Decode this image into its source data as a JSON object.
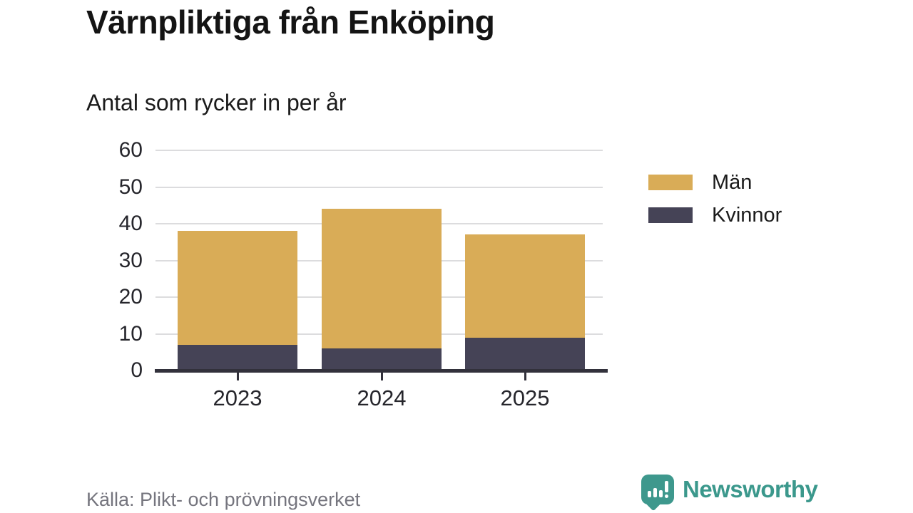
{
  "header": {
    "title": "Värnpliktiga från Enköping",
    "subtitle": "Antal som rycker in per år"
  },
  "chart_data": {
    "type": "bar",
    "stacked": true,
    "title": "Värnpliktiga från Enköping",
    "subtitle": "Antal som rycker in per år",
    "categories": [
      "2023",
      "2024",
      "2025"
    ],
    "series": [
      {
        "name": "Män",
        "color": "#d9ac57",
        "values": [
          31,
          38,
          28
        ]
      },
      {
        "name": "Kvinnor",
        "color": "#454356",
        "values": [
          7,
          6,
          9
        ]
      }
    ],
    "stack_order_bottom_to_top": [
      "Kvinnor",
      "Män"
    ],
    "totals": [
      38,
      44,
      37
    ],
    "xlabel": "",
    "ylabel": "",
    "ylim": [
      0,
      60
    ],
    "yticks": [
      0,
      10,
      20,
      30,
      40,
      50,
      60
    ],
    "grid": true,
    "legend_position": "right",
    "colors": {
      "grid": "#dcdcde",
      "axis": "#32313b",
      "tick_labels": "#26262c"
    }
  },
  "legend": {
    "items": [
      {
        "label": "Män",
        "color": "#d9ac57"
      },
      {
        "label": "Kvinnor",
        "color": "#454356"
      }
    ]
  },
  "footer": {
    "source": "Källa: Plikt- och prövningsverket",
    "brand": "Newsworthy",
    "brand_color": "#3b988c"
  },
  "icons": {
    "brand_logo": "newsworthy-speech-bubble-bar-chart-icon"
  }
}
